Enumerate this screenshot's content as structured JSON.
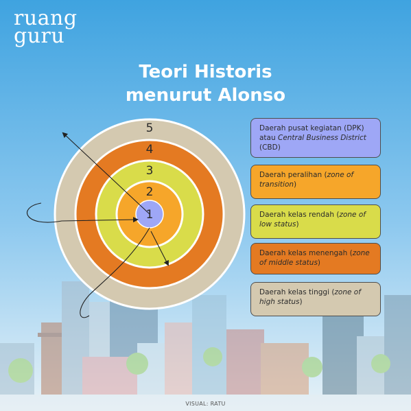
{
  "brand": {
    "line1": "ruang",
    "line2": "guru"
  },
  "title": {
    "line1": "Teori Historis",
    "line2": "menurut Alonso"
  },
  "zones": [
    {
      "number": "1",
      "color": "#9ea7f6"
    },
    {
      "number": "2",
      "color": "#f6a62a"
    },
    {
      "number": "3",
      "color": "#d9dc4a"
    },
    {
      "number": "4",
      "color": "#e47a22"
    },
    {
      "number": "5",
      "color": "#d4c9b0"
    }
  ],
  "legend": [
    {
      "color": "#9ea7f6",
      "text": "Daerah pusat kegiatan (DPK) atau ",
      "italic": "Central Business District",
      "after": " (CBD)"
    },
    {
      "color": "#f6a62a",
      "text": "Daerah peralihan (",
      "italic": "zone of transition",
      "after": ")"
    },
    {
      "color": "#d9dc4a",
      "text": "Daerah kelas rendah (",
      "italic": "zone of low status",
      "after": ")"
    },
    {
      "color": "#e47a22",
      "text": "Daerah kelas menengah (",
      "italic": "zone of middle status",
      "after": ")"
    },
    {
      "color": "#d4c9b0",
      "text": "Daerah kelas tinggi (",
      "italic": "zone of high status",
      "after": ")"
    }
  ],
  "credit": "VISUAL: RATU"
}
